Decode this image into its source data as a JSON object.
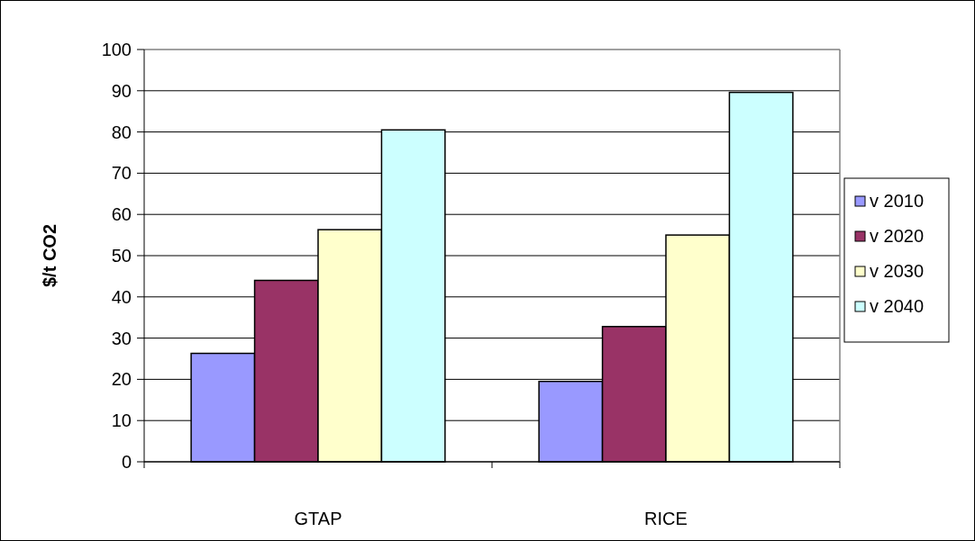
{
  "chart_data": {
    "type": "bar",
    "ylabel": "$/t CO2",
    "categories": [
      "GTAP",
      "RICE"
    ],
    "series": [
      {
        "name": "v 2010",
        "color": "#9999ff",
        "values": [
          26.3,
          19.5
        ]
      },
      {
        "name": "v 2020",
        "color": "#993366",
        "values": [
          44,
          32.8
        ]
      },
      {
        "name": "v 2030",
        "color": "#ffffcc",
        "values": [
          56.3,
          55
        ]
      },
      {
        "name": "v 2040",
        "color": "#ccffff",
        "values": [
          80.5,
          89.6
        ]
      }
    ],
    "ylim": [
      0,
      100
    ],
    "yticks": [
      0,
      10,
      20,
      30,
      40,
      50,
      60,
      70,
      80,
      90,
      100
    ],
    "grid": "y",
    "legend": "right"
  }
}
